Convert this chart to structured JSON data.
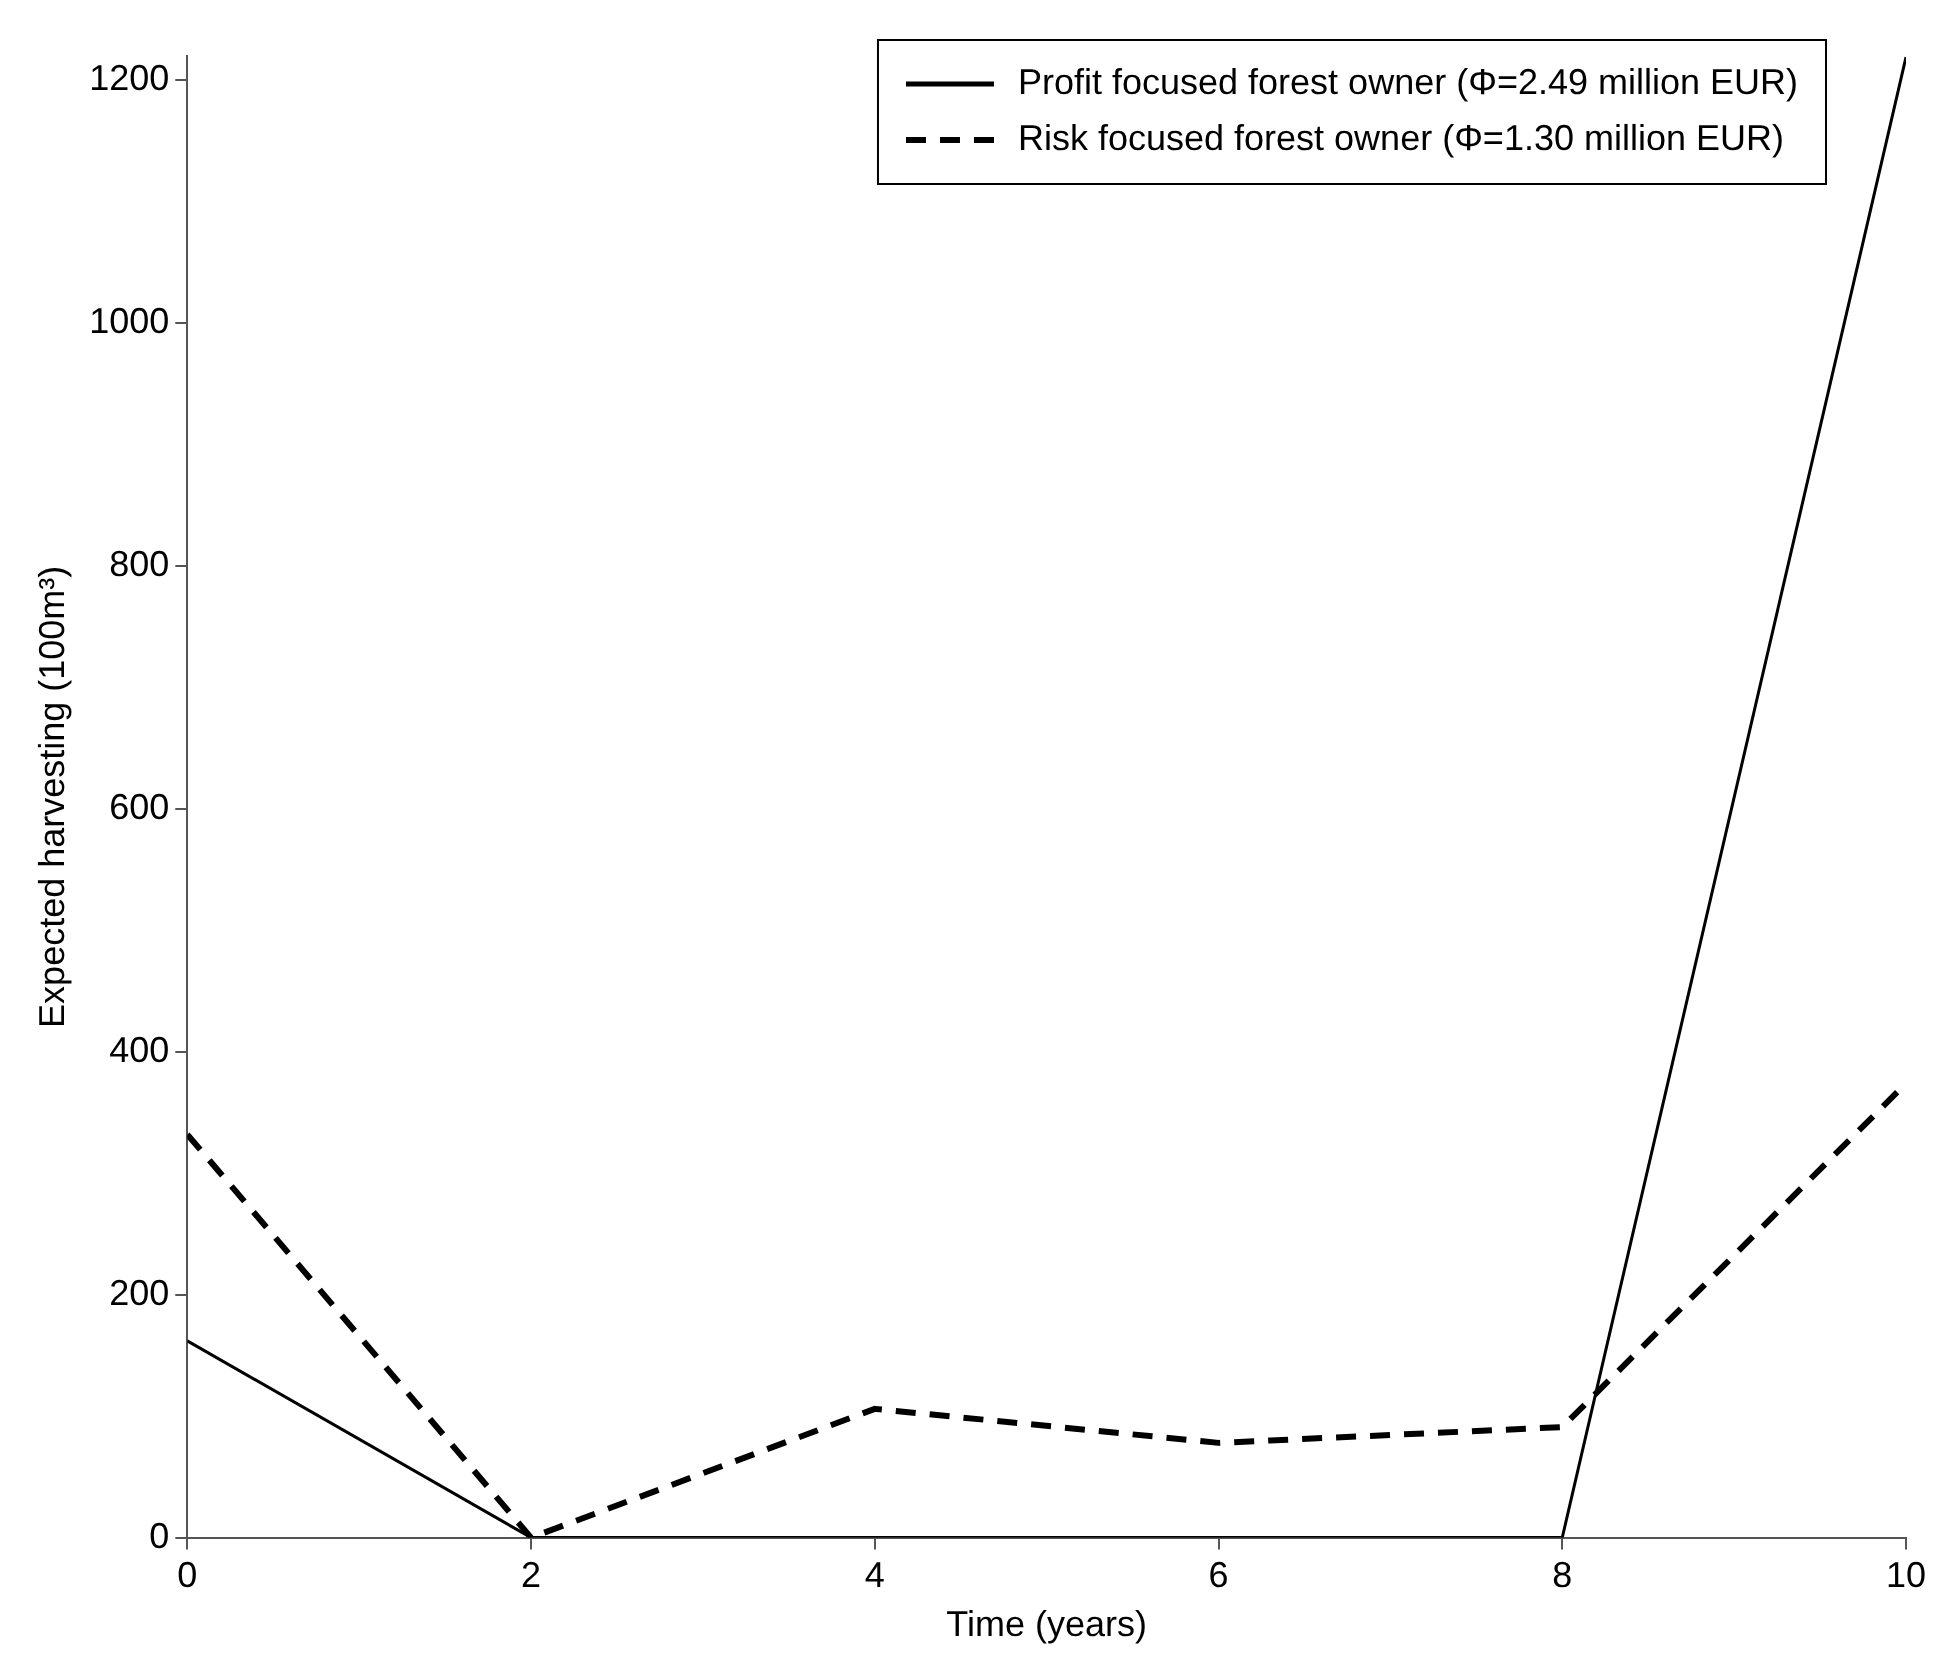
{
  "chart_data": {
    "type": "line",
    "xlabel": "Time (years)",
    "ylabel": "Expected harvesting (100m³)",
    "x": [
      0,
      2,
      4,
      6,
      8,
      10
    ],
    "series": [
      {
        "name": "Profit focused forest owner (Φ=2.49 million EUR)",
        "color": "#000000",
        "line_style": "solid",
        "values": [
          162,
          0,
          0,
          0,
          0,
          1219
        ]
      },
      {
        "name": "Risk focused forest owner (Φ=1.30 million EUR)",
        "color": "#000000",
        "line_style": "dashed",
        "values": [
          332,
          0,
          106,
          78,
          91,
          374
        ]
      }
    ],
    "xlim": [
      0,
      10
    ],
    "xticks": [
      0,
      2,
      4,
      6,
      8,
      10
    ],
    "ylim": [
      0,
      1220
    ],
    "yticks": [
      0,
      200,
      400,
      600,
      800,
      1000,
      1200
    ],
    "grid": false,
    "legend": "top right",
    "marker": "none"
  }
}
